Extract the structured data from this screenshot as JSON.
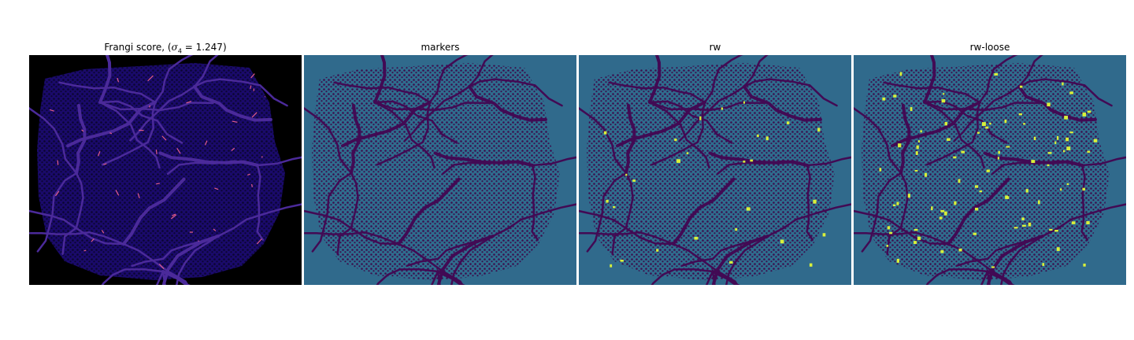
{
  "figure": {
    "panels": [
      {
        "id": "frangi",
        "title_prefix": "Frangi score, (",
        "title_sigma": "σ",
        "title_sub": "4",
        "title_value": " = 1.247)",
        "colormap": "plasma-like",
        "background": "#000000",
        "blob_color": "#1a0a6b",
        "vessel_color": "#4b2a9a",
        "highlight_color": "#e35c8a"
      },
      {
        "id": "markers",
        "title": "markers",
        "background": "#306a8c",
        "blob_color": "#3b0f4f",
        "vessel_color": "#420a54",
        "mid_color": "#2f6e8e"
      },
      {
        "id": "rw",
        "title": "rw",
        "background": "#306a8c",
        "blob_color": "#3b0f4f",
        "vessel_color": "#420a54",
        "mid_color": "#2f6e8e",
        "highlight_color": "#d9f03a"
      },
      {
        "id": "rw-loose",
        "title": "rw-loose",
        "background": "#306a8c",
        "blob_color": "#3b0f4f",
        "vessel_color": "#420a54",
        "mid_color": "#2f6e8e",
        "highlight_color": "#d9f03a"
      }
    ]
  }
}
